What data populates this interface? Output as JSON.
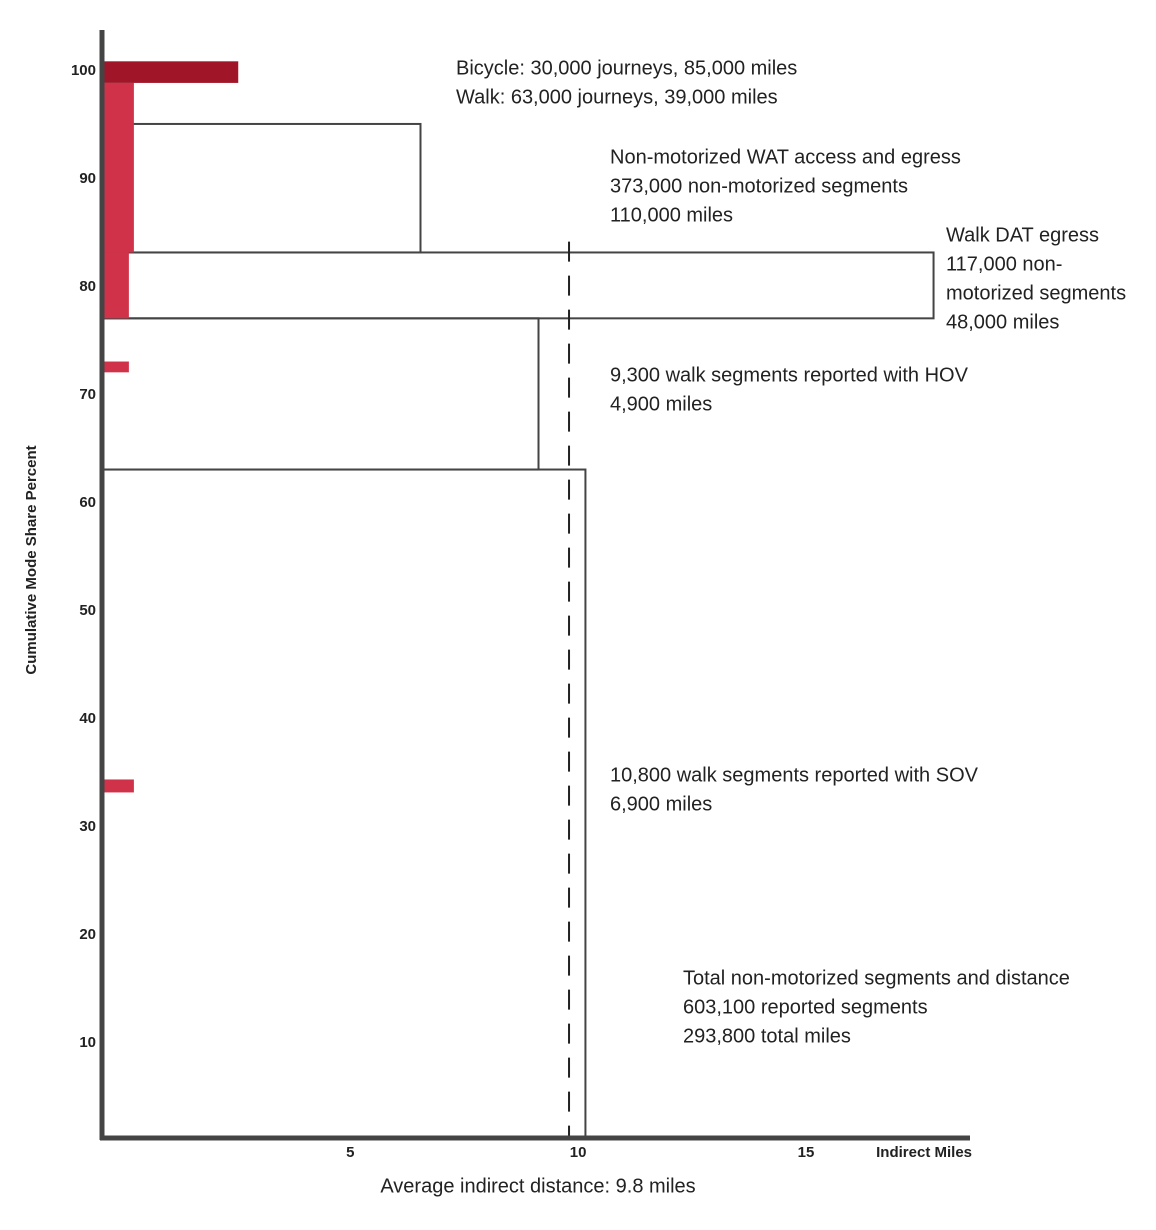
{
  "chart_data": {
    "type": "range-bar",
    "y_label": "Cumulative Mode Share Percent",
    "x_label": "Indirect Miles",
    "xlim": [
      -0.45,
      18.6
    ],
    "xticks": [
      5,
      10,
      15
    ],
    "ylim": [
      1.2,
      103.8
    ],
    "yticks": [
      10,
      20,
      30,
      40,
      50,
      60,
      70,
      80,
      90,
      100
    ],
    "boxes": [
      {
        "y_from": 1.2,
        "y_to": 63.1,
        "x": 10.16
      },
      {
        "y_from": 63.1,
        "y_to": 77.1,
        "x": 9.13
      },
      {
        "y_from": 77.1,
        "y_to": 83.2,
        "x": 17.8
      },
      {
        "y_from": 83.2,
        "y_to": 95.1,
        "x": 6.54
      }
    ],
    "box_color": "#444444",
    "bars": [
      {
        "y_from": 83.2,
        "y_to": 98.9,
        "x": 0.25,
        "color": "#d0324a"
      },
      {
        "y_from": 77.1,
        "y_to": 83.2,
        "x": 0.14,
        "color": "#d0324a"
      },
      {
        "y_from": 98.9,
        "y_to": 100.9,
        "x": 2.54,
        "color": "#a01628"
      },
      {
        "y_from": 72.1,
        "y_to": 73.1,
        "x": 0.14,
        "color": "#d0324a"
      },
      {
        "y_from": 33.2,
        "y_to": 34.4,
        "x": 0.25,
        "color": "#d0324a"
      }
    ],
    "average_line": 9.8,
    "average_line_top": 84.2,
    "average_caption": "Average indirect distance: 9.8 miles",
    "annotations": [
      [
        "Bicycle: 30,000 journeys, 85,000 miles",
        "Walk: 63,000 journeys, 39,000 miles"
      ],
      [
        "Non-motorized WAT access and egress",
        "373,000 non-motorized segments",
        "110,000 miles"
      ],
      [
        "Walk DAT egress",
        "117,000 non-",
        "motorized segments",
        "48,000 miles"
      ],
      [
        "9,300 walk segments reported with HOV",
        "4,900 miles"
      ],
      [
        "10,800 walk segments reported with SOV",
        "6,900 miles"
      ],
      [
        "Total non-motorized segments and distance",
        "603,100 reported segments",
        "293,800 total miles"
      ]
    ]
  }
}
